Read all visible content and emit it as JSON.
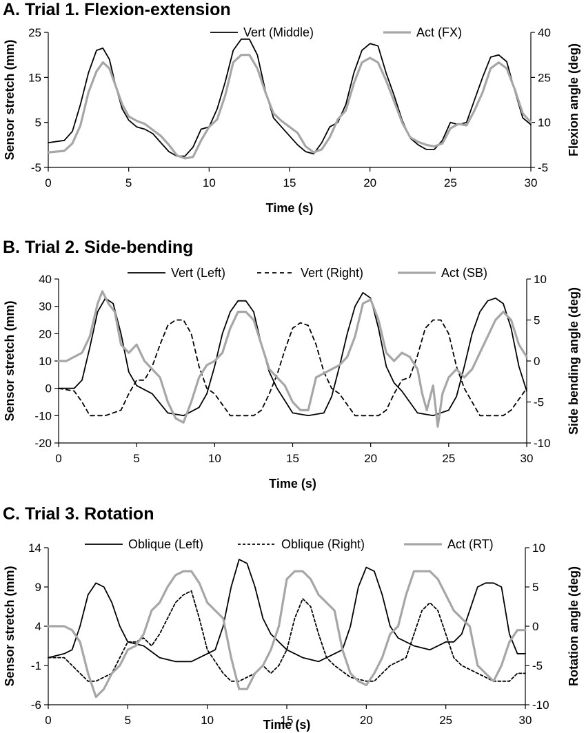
{
  "chart_data": [
    {
      "type": "line",
      "title": "A. Trial 1. Flexion-extension",
      "xlabel": "Time (s)",
      "ylabel": "Sensor stretch (mm)",
      "y2label": "Flexion angle  (deg)",
      "xlim": [
        0,
        30
      ],
      "ylim": [
        -5,
        25
      ],
      "y2lim": [
        -5,
        40
      ],
      "xticks": [
        0,
        5,
        10,
        15,
        20,
        25,
        30
      ],
      "yticks": [
        -5,
        5,
        15,
        25
      ],
      "y2ticks": [
        -5,
        10,
        25,
        40
      ],
      "legend_position": "top",
      "series": [
        {
          "name": "Vert (Middle)",
          "axis": "left",
          "color": "#000000",
          "dash": "none",
          "x": [
            0,
            1,
            1.5,
            2,
            2.5,
            3,
            3.4,
            3.8,
            4.2,
            4.6,
            5,
            5.5,
            6,
            6.5,
            7,
            7.5,
            8,
            8.5,
            9,
            9.5,
            10,
            10.5,
            11,
            11.5,
            12,
            12.5,
            13,
            13.5,
            14,
            14.5,
            15,
            15.5,
            16,
            16.5,
            17,
            17.5,
            18,
            18.5,
            19,
            19.5,
            20,
            20.5,
            21,
            21.5,
            22,
            22.5,
            23,
            23.5,
            24,
            24.5,
            25,
            25.5,
            26,
            26.5,
            27,
            27.5,
            28,
            28.5,
            29,
            29.5,
            30
          ],
          "y": [
            0.5,
            1.0,
            3,
            9,
            16,
            21,
            21.5,
            19,
            13,
            8,
            5.5,
            4,
            3.5,
            2.5,
            0.5,
            -1.5,
            -2.5,
            -2.5,
            -0.5,
            3.5,
            4,
            8,
            14,
            21,
            23.5,
            23.5,
            20,
            12,
            6,
            4,
            2,
            0,
            -1.5,
            -2,
            0.5,
            4,
            5,
            9,
            16,
            21,
            22.5,
            22,
            16,
            11,
            5.5,
            1.5,
            0,
            -1.0,
            -1.0,
            1,
            5,
            4.5,
            5,
            10,
            15,
            19.5,
            20,
            18.5,
            12,
            6,
            4.5
          ]
        },
        {
          "name": "Act (FX)",
          "axis": "right",
          "color": "#a6a6a6",
          "dash": "none",
          "x": [
            0,
            1,
            1.5,
            2,
            2.5,
            3,
            3.4,
            3.8,
            4.2,
            4.6,
            5,
            5.5,
            6,
            6.5,
            7,
            7.5,
            8,
            8.5,
            9,
            9.5,
            10,
            10.5,
            11,
            11.5,
            12,
            12.5,
            13,
            13.5,
            14,
            14.5,
            15,
            15.5,
            16,
            16.5,
            17,
            17.5,
            18,
            18.5,
            19,
            19.5,
            20,
            20.5,
            21,
            21.5,
            22,
            22.5,
            23,
            23.5,
            24,
            24.5,
            25,
            25.5,
            26,
            26.5,
            27,
            27.5,
            28,
            28.5,
            29,
            29.5,
            30
          ],
          "y": [
            0,
            0.5,
            3,
            9,
            20,
            27,
            30,
            28,
            22,
            16,
            12,
            10.5,
            9.5,
            7.5,
            5.5,
            2.5,
            -1,
            -2,
            -1.5,
            4,
            8.5,
            11,
            19,
            30,
            32.5,
            32.5,
            28,
            20,
            13,
            10.5,
            8.5,
            6.5,
            2,
            0,
            1,
            5,
            11,
            14,
            23,
            30,
            31.5,
            30,
            24,
            17,
            10,
            5,
            3.5,
            2.5,
            2,
            3,
            8,
            9.5,
            9,
            14,
            20,
            28,
            30,
            28,
            21,
            13,
            10
          ]
        }
      ]
    },
    {
      "type": "line",
      "title": "B. Trial 2. Side-bending",
      "xlabel": "Time (s)",
      "ylabel": "Sensor stretch (mm)",
      "y2label": "Side bending angle (deg)",
      "xlim": [
        0,
        30
      ],
      "ylim": [
        -20,
        40
      ],
      "y2lim": [
        -10,
        10
      ],
      "xticks": [
        0,
        5,
        10,
        15,
        20,
        25,
        30
      ],
      "yticks": [
        -20,
        -10,
        0,
        10,
        20,
        30,
        40
      ],
      "y2ticks": [
        -10,
        -5,
        0,
        5,
        10
      ],
      "legend_position": "top",
      "series": [
        {
          "name": "Vert (Left)",
          "axis": "left",
          "color": "#000000",
          "dash": "none",
          "x": [
            0,
            1,
            1.5,
            2,
            2.5,
            3,
            3.5,
            4,
            4.5,
            5,
            6,
            7,
            8,
            9,
            9.5,
            10,
            10.5,
            11,
            11.5,
            12,
            12.5,
            13,
            13.5,
            14,
            15,
            16,
            17,
            17.5,
            18,
            18.5,
            19,
            19.5,
            20,
            20.5,
            21,
            21.5,
            22,
            23,
            24,
            25,
            25.5,
            26,
            26.5,
            27,
            27.5,
            28,
            28.5,
            29,
            29.5,
            30
          ],
          "y": [
            0,
            0,
            3,
            15,
            28,
            33,
            31,
            20,
            6,
            1,
            -2,
            -9,
            -10,
            -7,
            -2,
            8,
            20,
            28,
            32,
            32,
            28,
            16,
            6,
            0,
            -9,
            -10,
            -9,
            -3,
            8,
            20,
            30,
            35,
            33,
            22,
            8,
            2,
            -1,
            -9,
            -10,
            -8,
            -3,
            8,
            20,
            28,
            32,
            33,
            31,
            22,
            8,
            -1
          ]
        },
        {
          "name": "Vert (Right)",
          "axis": "left",
          "color": "#000000",
          "dash": "6,5",
          "x": [
            0,
            1,
            1.5,
            2,
            2.5,
            3,
            4,
            4.5,
            5,
            5.5,
            6,
            6.5,
            7,
            7.5,
            8,
            8.5,
            9,
            9.5,
            10,
            11,
            12,
            12.5,
            13,
            13.5,
            14,
            14.5,
            15,
            15.5,
            16,
            16.5,
            17,
            17.5,
            18,
            19,
            20,
            20.5,
            21,
            21.5,
            22,
            22.5,
            23,
            23.5,
            24,
            24.5,
            25,
            25.5,
            26,
            27,
            28,
            28.5,
            29,
            29.5,
            30
          ],
          "y": [
            0,
            -1,
            -5,
            -10,
            -10,
            -10,
            -8,
            -2,
            3,
            3,
            8,
            16,
            23,
            25,
            25,
            20,
            8,
            0,
            -2,
            -10,
            -10,
            -10,
            -8,
            -2,
            5,
            14,
            22,
            24,
            23,
            16,
            6,
            0,
            -2,
            -10,
            -10,
            -10,
            -8,
            -2,
            3,
            4,
            12,
            22,
            25,
            25,
            20,
            8,
            0,
            -10,
            -10,
            -10,
            -8,
            -4,
            0
          ]
        },
        {
          "name": "Act (SB)",
          "axis": "right",
          "color": "#a6a6a6",
          "dash": "none",
          "x": [
            0,
            0.5,
            1,
            1.5,
            2,
            2.5,
            2.8,
            3.2,
            3.6,
            4,
            4.5,
            5,
            5.5,
            6,
            6.5,
            7,
            7.5,
            8,
            8.5,
            9,
            9.5,
            10,
            10.5,
            11,
            11.5,
            12,
            12.5,
            13,
            13.5,
            14,
            14.5,
            15,
            15.5,
            16,
            16.5,
            17,
            17.5,
            18,
            18.5,
            19,
            19.5,
            20,
            20.5,
            21,
            21.5,
            22,
            22.5,
            23,
            23.3,
            23.6,
            24,
            24.3,
            24.6,
            25,
            25.5,
            26,
            26.5,
            27,
            27.5,
            28,
            28.5,
            29,
            29.5,
            30
          ],
          "y": [
            0,
            0,
            0.5,
            1,
            3,
            7,
            8.5,
            7,
            6,
            2,
            1,
            2,
            0,
            -1,
            -2,
            -5,
            -7,
            -7.5,
            -5,
            -2,
            -0.5,
            0,
            1,
            4,
            6,
            6,
            5,
            2,
            -1,
            -2,
            -3,
            -5,
            -6,
            -6,
            -2,
            -1.5,
            -1,
            -0.5,
            0.5,
            3,
            7,
            7.5,
            5,
            1,
            0,
            1,
            0.5,
            -1,
            -4,
            -6,
            -3,
            -8,
            -4,
            -2,
            -1,
            -2,
            -1,
            1,
            3,
            5,
            6,
            5,
            2,
            0.5
          ]
        }
      ]
    },
    {
      "type": "line",
      "title": "C. Trial 3. Rotation",
      "xlabel": "Time (s)",
      "ylabel": "Sensor stretch (mm)",
      "y2label": "Rotation angle (deg)",
      "xlim": [
        0,
        30
      ],
      "ylim": [
        -6,
        14
      ],
      "y2lim": [
        -10,
        10
      ],
      "xticks": [
        0,
        5,
        10,
        15,
        20,
        25,
        30
      ],
      "yticks": [
        -6,
        -1,
        4,
        9,
        14
      ],
      "y2ticks": [
        -10,
        -5,
        0,
        5,
        10
      ],
      "legend_position": "top",
      "series": [
        {
          "name": "Oblique (Left)",
          "axis": "left",
          "color": "#000000",
          "dash": "none",
          "x": [
            0,
            1,
            1.5,
            2,
            2.5,
            3,
            3.5,
            4,
            4.5,
            5,
            6,
            7,
            8,
            9,
            10,
            10.5,
            11,
            11.5,
            12,
            12.5,
            13,
            13.5,
            14,
            15,
            16,
            17,
            17.5,
            18,
            18.5,
            19,
            19.5,
            20,
            20.5,
            21,
            21.5,
            22,
            23,
            24,
            25,
            25.5,
            26,
            26.5,
            27,
            27.5,
            28,
            28.5,
            29,
            29.5,
            30
          ],
          "y": [
            0,
            0.5,
            1,
            4,
            8,
            9.5,
            9,
            7,
            4,
            2,
            1.5,
            0,
            -0.5,
            -0.5,
            0.5,
            1,
            4,
            9,
            12.5,
            12,
            9,
            5,
            3,
            1,
            0,
            -0.5,
            0,
            0.5,
            1,
            4,
            9,
            11.5,
            11,
            8,
            4,
            2.5,
            1.5,
            1,
            2,
            2,
            3,
            6,
            9,
            9.5,
            9.5,
            9,
            3,
            0.5,
            0.5
          ]
        },
        {
          "name": "Oblique (Right)",
          "axis": "left",
          "color": "#000000",
          "dash": "4,3",
          "x": [
            0,
            1,
            1.5,
            2,
            2.5,
            3,
            3.5,
            4,
            4.5,
            5,
            5.5,
            6,
            6.5,
            7,
            7.5,
            8,
            8.5,
            9,
            9.5,
            10,
            11,
            11.5,
            12,
            12.5,
            13,
            13.5,
            14,
            14.5,
            15,
            15.5,
            16,
            16.5,
            17,
            17.5,
            18,
            19,
            20,
            20.5,
            21,
            21.5,
            22,
            22.5,
            23,
            23.5,
            24,
            24.5,
            25,
            25.5,
            26,
            27,
            28,
            28.5,
            29,
            29.5,
            30
          ],
          "y": [
            0,
            0,
            -1,
            -2,
            -3,
            -3,
            -2.5,
            -2,
            0,
            2,
            2,
            2.5,
            1.5,
            3,
            5,
            7,
            8,
            8.5,
            5,
            1,
            -2,
            -3,
            -3,
            -2.5,
            -2,
            -1,
            -2,
            -1,
            1,
            5,
            7.5,
            6.5,
            3,
            0,
            -1,
            -2.5,
            -3,
            -3,
            -2,
            -1,
            -0.5,
            0,
            3,
            6,
            7,
            6,
            3,
            0,
            -1,
            -2,
            -3,
            -3,
            -3,
            -2,
            -2
          ]
        },
        {
          "name": "Act (RT)",
          "axis": "right",
          "color": "#a6a6a6",
          "dash": "none",
          "x": [
            0,
            1,
            1.5,
            2,
            2.5,
            3,
            3.5,
            4,
            4.5,
            5,
            5.5,
            6,
            6.5,
            7,
            7.5,
            8,
            8.5,
            9,
            9.5,
            10,
            10.5,
            11,
            11.5,
            12,
            12.5,
            13,
            13.5,
            14,
            14.5,
            15,
            15.5,
            16,
            16.5,
            17,
            17.5,
            18,
            18.5,
            19,
            19.5,
            20,
            20.5,
            21,
            21.5,
            22,
            22.5,
            23,
            23.5,
            24,
            24.5,
            25,
            25.5,
            26,
            26.5,
            27,
            27.5,
            28,
            28.5,
            29,
            29.5,
            30
          ],
          "y": [
            0,
            0,
            -0.5,
            -2,
            -6,
            -9,
            -8,
            -6,
            -5,
            -3,
            -2.5,
            -1,
            2,
            3,
            5,
            6.5,
            7,
            7,
            5.5,
            3,
            2,
            1,
            -4,
            -8,
            -8,
            -6,
            -5,
            -3,
            0,
            6,
            7,
            7,
            6,
            4,
            3,
            2,
            -3,
            -6,
            -7,
            -7.5,
            -6,
            -4,
            -1,
            0,
            4,
            7,
            7,
            7,
            6,
            4,
            2,
            1,
            0,
            -5,
            -6,
            -7,
            -5,
            -2,
            -0.5,
            -0.5
          ]
        }
      ]
    }
  ]
}
